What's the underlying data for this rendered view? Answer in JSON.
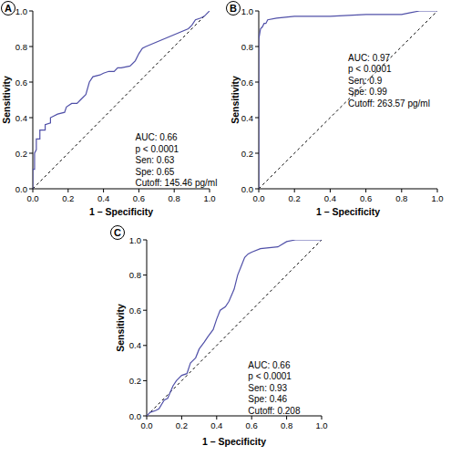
{
  "chart_data": [
    {
      "type": "line",
      "title": "A",
      "xlabel": "1 – Specificity",
      "ylabel": "Sensitivity",
      "x": [
        0,
        0,
        0.01,
        0.01,
        0.02,
        0.02,
        0.04,
        0.04,
        0.07,
        0.07,
        0.1,
        0.1,
        0.14,
        0.18,
        0.19,
        0.22,
        0.25,
        0.27,
        0.3,
        0.32,
        0.34,
        0.38,
        0.4,
        0.43,
        0.46,
        0.48,
        0.5,
        0.55,
        0.58,
        0.6,
        0.62,
        0.64,
        0.88,
        0.9,
        0.92,
        0.95,
        0.97,
        0.99,
        1.0
      ],
      "series": [
        {
          "color": "#5050a8",
          "values": [
            0,
            0.11,
            0.11,
            0.2,
            0.22,
            0.28,
            0.28,
            0.33,
            0.33,
            0.36,
            0.37,
            0.4,
            0.42,
            0.43,
            0.46,
            0.48,
            0.48,
            0.5,
            0.53,
            0.6,
            0.63,
            0.64,
            0.65,
            0.66,
            0.66,
            0.68,
            0.68,
            0.69,
            0.72,
            0.76,
            0.79,
            0.8,
            0.9,
            0.92,
            0.95,
            0.96,
            0.97,
            0.99,
            1.0
          ]
        }
      ],
      "xlim": [
        0,
        1
      ],
      "ylim": [
        0,
        1
      ],
      "xticks": [
        {
          "value": 0,
          "label": "0.0"
        },
        0.2,
        0.4,
        0.6,
        0.8,
        {
          "value": 1,
          "label": "1.0"
        }
      ],
      "yticks": [
        {
          "value": 0,
          "label": "0.0"
        },
        0.2,
        0.4,
        0.6,
        0.8,
        {
          "value": 1,
          "label": "1.0"
        }
      ],
      "annotations": [
        "AUC: 0.66",
        "p < 0.0001",
        "Sen: 0.63",
        "Spe: 0.65",
        "Cutoff: 145.46 pg/ml"
      ]
    },
    {
      "type": "line",
      "title": "B",
      "xlabel": "1 – Specificity",
      "ylabel": "Sensitivity",
      "x": [
        0,
        0,
        0.01,
        0.02,
        0.03,
        0.04,
        0.05,
        0.1,
        0.2,
        0.4,
        0.6,
        0.8,
        0.85,
        0.9,
        1.0
      ],
      "series": [
        {
          "color": "#5050a8",
          "values": [
            0,
            0.84,
            0.9,
            0.91,
            0.93,
            0.93,
            0.95,
            0.96,
            0.97,
            0.97,
            0.98,
            0.98,
            0.99,
            1.0,
            1.0
          ]
        }
      ],
      "xlim": [
        0,
        1
      ],
      "ylim": [
        0,
        1
      ],
      "xticks": [
        {
          "value": 0,
          "label": "0.0"
        },
        0.2,
        0.4,
        0.6,
        0.8,
        {
          "value": 1,
          "label": "1.0"
        }
      ],
      "yticks": [
        {
          "value": 0,
          "label": "0.0"
        },
        0.2,
        0.4,
        0.6,
        0.8,
        {
          "value": 1,
          "label": "1.0"
        }
      ],
      "annotations": [
        "AUC: 0.97",
        "p < 0.0001",
        "Sen: 0.9",
        "Spe: 0.99",
        "Cutoff: 263.57 pg/ml"
      ]
    },
    {
      "type": "line",
      "title": "C",
      "xlabel": "1 – Specificity",
      "ylabel": "Sensitivity",
      "x": [
        0,
        0.02,
        0.05,
        0.07,
        0.1,
        0.12,
        0.15,
        0.17,
        0.2,
        0.23,
        0.25,
        0.28,
        0.3,
        0.33,
        0.35,
        0.38,
        0.4,
        0.42,
        0.45,
        0.47,
        0.5,
        0.52,
        0.54,
        0.56,
        0.58,
        0.6,
        0.65,
        0.75,
        0.8,
        0.85,
        1.0
      ],
      "series": [
        {
          "color": "#5050a8",
          "values": [
            0,
            0.02,
            0.03,
            0.04,
            0.09,
            0.1,
            0.17,
            0.2,
            0.23,
            0.24,
            0.3,
            0.33,
            0.38,
            0.42,
            0.45,
            0.49,
            0.55,
            0.6,
            0.62,
            0.65,
            0.72,
            0.8,
            0.85,
            0.9,
            0.92,
            0.93,
            0.95,
            0.96,
            0.99,
            1.0,
            1.0
          ]
        }
      ],
      "xlim": [
        0,
        1
      ],
      "ylim": [
        0,
        1
      ],
      "xticks": [
        {
          "value": 0,
          "label": "0.0"
        },
        0.2,
        0.4,
        0.6,
        0.8,
        {
          "value": 1,
          "label": "1.0"
        }
      ],
      "yticks": [
        {
          "value": 0,
          "label": "0.0"
        },
        0.2,
        0.4,
        0.6,
        0.8,
        {
          "value": 1,
          "label": "1.0"
        }
      ],
      "annotations": [
        "AUC: 0.66",
        "p < 0.0001",
        "Sen: 0.93",
        "Spe: 0.46",
        "Cutoff: 0.208"
      ]
    }
  ]
}
